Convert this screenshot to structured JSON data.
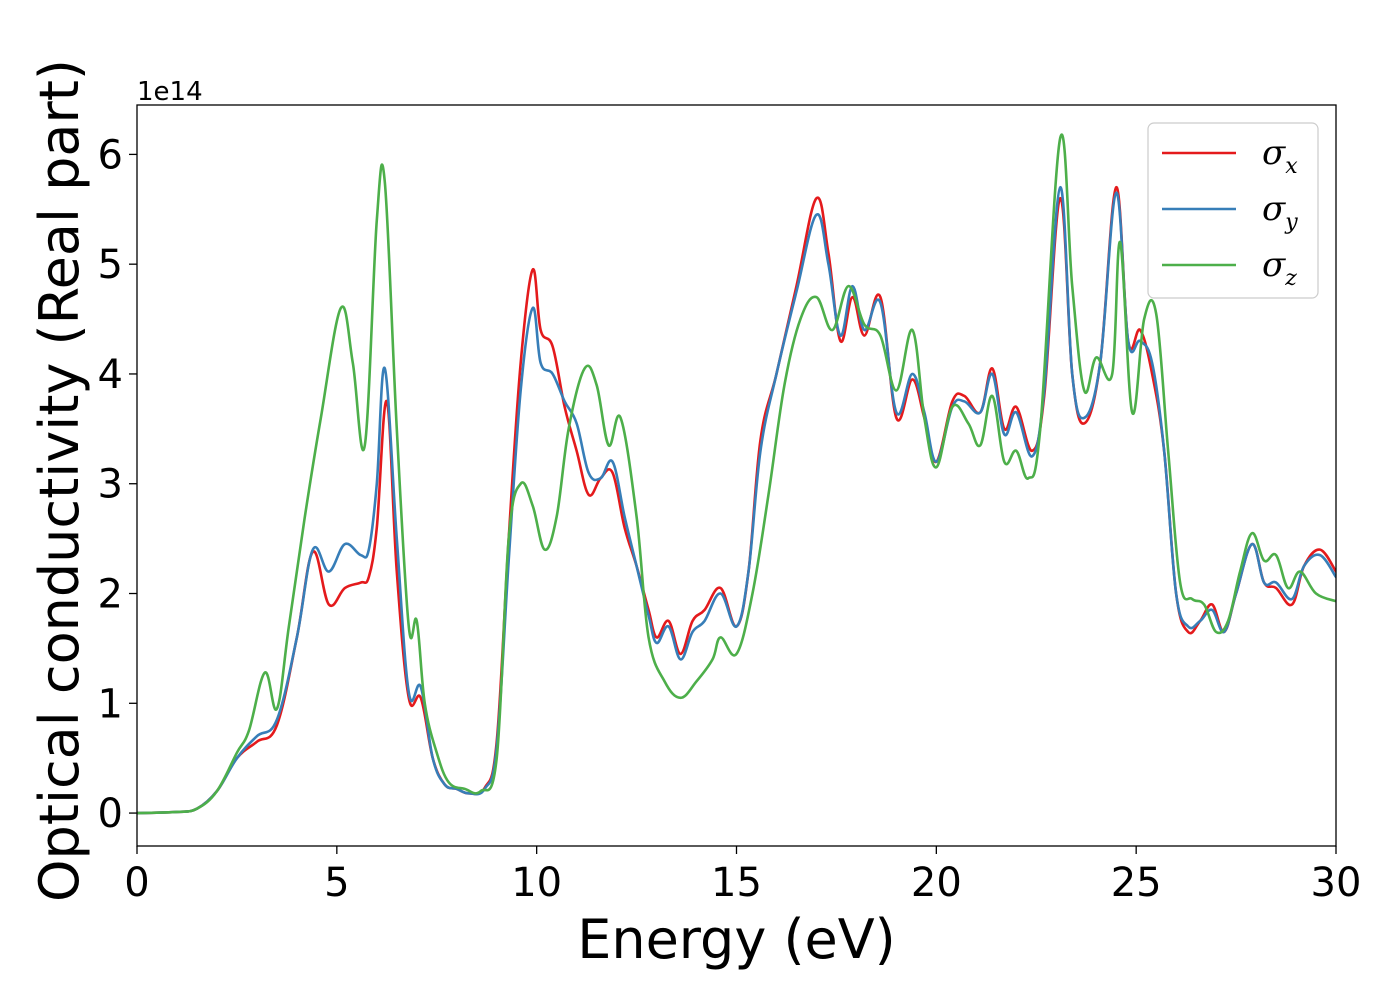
{
  "chart_data": {
    "type": "line",
    "title": "",
    "xlabel": "Energy (eV)",
    "ylabel": "Optical conductivity (Real part)",
    "y_offset_label": "1e14",
    "y_scale": 100000000000000.0,
    "xlim": [
      0,
      30
    ],
    "ylim": [
      -0.3,
      6.45
    ],
    "x_ticks": [
      0,
      5,
      10,
      15,
      20,
      25,
      30
    ],
    "y_ticks": [
      0,
      1,
      2,
      3,
      4,
      5,
      6
    ],
    "grid": false,
    "legend_position": "top-right",
    "series": [
      {
        "name": "σx",
        "symbol": "σ",
        "subscript": "x",
        "color": "#e41a1c",
        "x": [
          0,
          1,
          1.5,
          2,
          2.5,
          3,
          3.5,
          4,
          4.4,
          4.8,
          5.2,
          5.6,
          5.8,
          6.0,
          6.25,
          6.5,
          6.8,
          7.1,
          7.4,
          7.7,
          8.0,
          8.3,
          8.7,
          9.0,
          9.3,
          9.6,
          9.9,
          10.1,
          10.4,
          10.7,
          11.0,
          11.3,
          11.6,
          11.9,
          12.2,
          12.5,
          12.8,
          13.0,
          13.3,
          13.6,
          13.9,
          14.2,
          14.6,
          15.0,
          15.3,
          15.6,
          16.0,
          16.5,
          17.0,
          17.3,
          17.6,
          17.9,
          18.2,
          18.6,
          19.0,
          19.4,
          19.7,
          20.0,
          20.4,
          20.7,
          21.1,
          21.4,
          21.7,
          22.0,
          22.4,
          22.7,
          23.1,
          23.4,
          23.7,
          24.1,
          24.5,
          24.8,
          25.1,
          25.4,
          25.7,
          26.0,
          26.3,
          26.6,
          26.9,
          27.2,
          27.5,
          27.9,
          28.2,
          28.5,
          28.9,
          29.2,
          29.6,
          30.0
        ],
        "y": [
          0,
          0.01,
          0.04,
          0.2,
          0.5,
          0.65,
          0.8,
          1.6,
          2.38,
          1.9,
          2.05,
          2.1,
          2.15,
          2.6,
          3.75,
          2.2,
          1.05,
          1.05,
          0.5,
          0.26,
          0.22,
          0.18,
          0.23,
          0.65,
          2.5,
          4.1,
          4.95,
          4.4,
          4.25,
          3.7,
          3.3,
          2.9,
          3.05,
          3.1,
          2.6,
          2.25,
          1.85,
          1.6,
          1.75,
          1.45,
          1.75,
          1.85,
          2.05,
          1.7,
          2.2,
          3.4,
          4.0,
          4.8,
          5.6,
          5.1,
          4.3,
          4.7,
          4.35,
          4.7,
          3.6,
          3.95,
          3.6,
          3.2,
          3.75,
          3.8,
          3.65,
          4.05,
          3.5,
          3.7,
          3.3,
          3.8,
          5.6,
          4.0,
          3.55,
          4.1,
          5.7,
          4.3,
          4.4,
          4.0,
          3.3,
          2.0,
          1.65,
          1.75,
          1.9,
          1.65,
          2.0,
          2.45,
          2.1,
          2.05,
          1.9,
          2.25,
          2.4,
          2.2
        ]
      },
      {
        "name": "σy",
        "symbol": "σ",
        "subscript": "y",
        "color": "#377eb8",
        "x": [
          0,
          1,
          1.5,
          2,
          2.5,
          3,
          3.5,
          4,
          4.4,
          4.8,
          5.2,
          5.6,
          5.8,
          6.0,
          6.2,
          6.5,
          6.8,
          7.1,
          7.4,
          7.7,
          8.0,
          8.3,
          8.7,
          9.0,
          9.3,
          9.6,
          9.9,
          10.1,
          10.4,
          10.7,
          11.0,
          11.3,
          11.6,
          11.9,
          12.2,
          12.5,
          12.8,
          13.0,
          13.3,
          13.6,
          13.9,
          14.2,
          14.6,
          15.0,
          15.3,
          15.6,
          16.0,
          16.5,
          17.0,
          17.3,
          17.6,
          17.9,
          18.2,
          18.6,
          19.0,
          19.4,
          19.7,
          20.0,
          20.4,
          20.7,
          21.1,
          21.4,
          21.7,
          22.0,
          22.4,
          22.7,
          23.1,
          23.4,
          23.7,
          24.1,
          24.5,
          24.8,
          25.1,
          25.4,
          25.7,
          26.0,
          26.3,
          26.6,
          26.9,
          27.2,
          27.5,
          27.9,
          28.2,
          28.5,
          28.9,
          29.2,
          29.6,
          30.0
        ],
        "y": [
          0,
          0.01,
          0.04,
          0.2,
          0.5,
          0.7,
          0.85,
          1.6,
          2.4,
          2.2,
          2.45,
          2.35,
          2.4,
          3.0,
          4.05,
          2.5,
          1.1,
          1.15,
          0.5,
          0.26,
          0.22,
          0.18,
          0.22,
          0.6,
          2.3,
          3.85,
          4.6,
          4.1,
          4.0,
          3.75,
          3.55,
          3.1,
          3.05,
          3.2,
          2.7,
          2.25,
          1.8,
          1.55,
          1.7,
          1.4,
          1.65,
          1.75,
          2.0,
          1.7,
          2.2,
          3.3,
          4.0,
          4.75,
          5.45,
          5.0,
          4.35,
          4.8,
          4.4,
          4.65,
          3.65,
          4.0,
          3.65,
          3.2,
          3.7,
          3.75,
          3.65,
          4.0,
          3.45,
          3.65,
          3.25,
          3.85,
          5.7,
          4.0,
          3.6,
          4.1,
          5.65,
          4.3,
          4.3,
          4.1,
          3.3,
          2.0,
          1.7,
          1.75,
          1.85,
          1.65,
          2.0,
          2.45,
          2.1,
          2.1,
          1.95,
          2.25,
          2.35,
          2.15
        ]
      },
      {
        "name": "σz",
        "symbol": "σ",
        "subscript": "z",
        "color": "#4daf4a",
        "x": [
          0,
          1,
          1.5,
          2,
          2.5,
          2.8,
          3.2,
          3.5,
          3.8,
          4.2,
          4.6,
          5.1,
          5.4,
          5.7,
          6.0,
          6.2,
          6.5,
          6.8,
          7.0,
          7.2,
          7.5,
          7.8,
          8.2,
          8.6,
          9.0,
          9.3,
          9.6,
          9.9,
          10.2,
          10.5,
          10.8,
          11.2,
          11.5,
          11.8,
          12.1,
          12.5,
          12.8,
          13.2,
          13.6,
          14.0,
          14.4,
          14.6,
          15.0,
          15.4,
          15.8,
          16.2,
          16.6,
          17.0,
          17.4,
          17.8,
          18.2,
          18.6,
          19.0,
          19.4,
          19.7,
          20.0,
          20.4,
          20.8,
          21.1,
          21.4,
          21.7,
          22.0,
          22.3,
          22.6,
          23.1,
          23.4,
          23.7,
          24.0,
          24.4,
          24.6,
          24.9,
          25.2,
          25.5,
          25.8,
          26.1,
          26.4,
          26.7,
          27.0,
          27.3,
          27.6,
          27.9,
          28.2,
          28.5,
          28.8,
          29.1,
          29.5,
          30.0
        ],
        "y": [
          0,
          0.01,
          0.04,
          0.2,
          0.55,
          0.75,
          1.28,
          0.95,
          1.7,
          2.7,
          3.6,
          4.6,
          4.1,
          3.35,
          5.4,
          5.75,
          3.5,
          1.7,
          1.75,
          1.0,
          0.55,
          0.28,
          0.22,
          0.2,
          0.5,
          2.5,
          3.0,
          2.8,
          2.4,
          2.7,
          3.5,
          4.05,
          3.9,
          3.35,
          3.6,
          2.7,
          1.6,
          1.2,
          1.05,
          1.2,
          1.4,
          1.6,
          1.45,
          2.0,
          2.9,
          3.9,
          4.5,
          4.7,
          4.4,
          4.8,
          4.45,
          4.35,
          3.85,
          4.4,
          3.6,
          3.15,
          3.7,
          3.55,
          3.35,
          3.8,
          3.2,
          3.3,
          3.05,
          3.5,
          6.15,
          4.8,
          3.85,
          4.15,
          4.0,
          5.2,
          3.65,
          4.5,
          4.55,
          3.3,
          2.1,
          1.95,
          1.9,
          1.65,
          1.75,
          2.2,
          2.55,
          2.3,
          2.35,
          2.05,
          2.2,
          2.0,
          1.93
        ]
      }
    ]
  }
}
